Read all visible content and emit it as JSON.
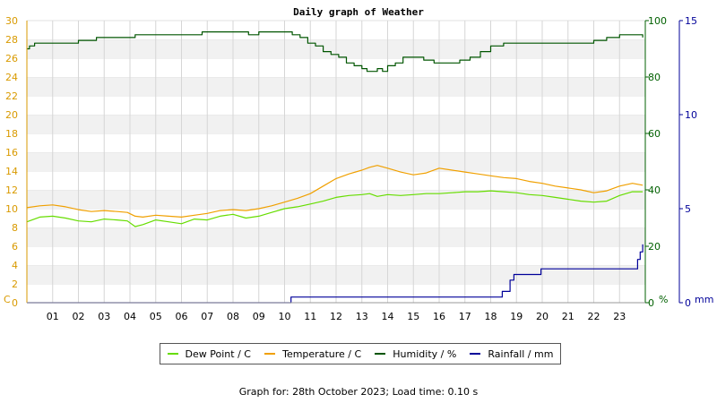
{
  "chart_data": {
    "type": "line",
    "title": "Daily graph of Weather",
    "x_ticks": [
      "01",
      "02",
      "03",
      "04",
      "05",
      "06",
      "07",
      "08",
      "09",
      "10",
      "11",
      "12",
      "13",
      "14",
      "15",
      "16",
      "17",
      "18",
      "19",
      "20",
      "21",
      "22",
      "23"
    ],
    "x_range": [
      0,
      24
    ],
    "axes": {
      "left": {
        "unit": "C",
        "min": 0,
        "max": 30,
        "step": 2,
        "color": "#d99a00"
      },
      "right1": {
        "unit": "%",
        "min": 0,
        "max": 100,
        "step": 20,
        "color": "#006000"
      },
      "right2": {
        "unit": "mm",
        "min": 0,
        "max": 15,
        "step": 5,
        "color": "#000099"
      }
    },
    "series": [
      {
        "name": "Dew Point / C",
        "color": "#66dd00",
        "axis": "left",
        "x": [
          0,
          0.5,
          1,
          1.5,
          2,
          2.5,
          3,
          3.5,
          3.9,
          4.2,
          4.5,
          5,
          5.5,
          6,
          6.5,
          7,
          7.5,
          8,
          8.5,
          9,
          9.5,
          10,
          10.5,
          11,
          11.5,
          12,
          12.5,
          13,
          13.3,
          13.6,
          14,
          14.5,
          15,
          15.5,
          16,
          16.5,
          17,
          17.5,
          18,
          18.5,
          19,
          19.5,
          20,
          20.5,
          21,
          21.5,
          22,
          22.5,
          23,
          23.5,
          23.9
        ],
        "y": [
          8.6,
          9.1,
          9.2,
          9.0,
          8.7,
          8.6,
          8.9,
          8.8,
          8.7,
          8.1,
          8.3,
          8.8,
          8.6,
          8.4,
          8.9,
          8.8,
          9.2,
          9.4,
          9.0,
          9.2,
          9.6,
          10.0,
          10.2,
          10.5,
          10.8,
          11.2,
          11.4,
          11.5,
          11.6,
          11.3,
          11.5,
          11.4,
          11.5,
          11.6,
          11.6,
          11.7,
          11.8,
          11.8,
          11.9,
          11.8,
          11.7,
          11.5,
          11.4,
          11.2,
          11.0,
          10.8,
          10.7,
          10.8,
          11.4,
          11.8,
          11.8
        ]
      },
      {
        "name": "Temperature / C",
        "color": "#f0a000",
        "axis": "left",
        "x": [
          0,
          0.5,
          1,
          1.5,
          2,
          2.5,
          3,
          3.5,
          3.9,
          4.2,
          4.5,
          5,
          5.5,
          6,
          6.5,
          7,
          7.5,
          8,
          8.5,
          9,
          9.5,
          10,
          10.5,
          11,
          11.5,
          12,
          12.5,
          13,
          13.3,
          13.6,
          14,
          14.5,
          15,
          15.5,
          16,
          16.5,
          17,
          17.5,
          18,
          18.5,
          19,
          19.5,
          20,
          20.5,
          21,
          21.5,
          22,
          22.5,
          23,
          23.5,
          23.9
        ],
        "y": [
          10.1,
          10.3,
          10.4,
          10.2,
          9.9,
          9.7,
          9.8,
          9.7,
          9.6,
          9.2,
          9.1,
          9.3,
          9.2,
          9.1,
          9.3,
          9.5,
          9.8,
          9.9,
          9.8,
          10.0,
          10.3,
          10.7,
          11.1,
          11.6,
          12.4,
          13.2,
          13.7,
          14.1,
          14.4,
          14.6,
          14.3,
          13.9,
          13.6,
          13.8,
          14.3,
          14.1,
          13.9,
          13.7,
          13.5,
          13.3,
          13.2,
          12.9,
          12.7,
          12.4,
          12.2,
          12.0,
          11.7,
          11.9,
          12.4,
          12.7,
          12.5
        ]
      },
      {
        "name": "Humidity / %",
        "color": "#005500",
        "axis": "right1",
        "x": [
          0,
          0.1,
          0.2,
          0.3,
          0.8,
          1.5,
          2,
          2.3,
          2.7,
          3.2,
          3.8,
          4.2,
          4.7,
          5.2,
          5.7,
          6.2,
          6.8,
          7.3,
          7.8,
          8.2,
          8.6,
          9.0,
          9.5,
          10.0,
          10.3,
          10.6,
          10.9,
          11.2,
          11.5,
          11.8,
          12.1,
          12.4,
          12.7,
          13.0,
          13.2,
          13.4,
          13.6,
          13.8,
          14.0,
          14.3,
          14.6,
          15.0,
          15.4,
          15.8,
          16.3,
          16.8,
          17.2,
          17.6,
          18.0,
          18.5,
          19.0,
          19.5,
          20.0,
          20.5,
          21.0,
          21.5,
          22.0,
          22.5,
          23.0,
          23.5,
          23.9
        ],
        "y": [
          90,
          91,
          91,
          92,
          92,
          92,
          93,
          93,
          94,
          94,
          94,
          95,
          95,
          95,
          95,
          95,
          96,
          96,
          96,
          96,
          95,
          96,
          96,
          96,
          95,
          94,
          92,
          91,
          89,
          88,
          87,
          85,
          84,
          83,
          82,
          82,
          83,
          82,
          84,
          85,
          87,
          87,
          86,
          85,
          85,
          86,
          87,
          89,
          91,
          92,
          92,
          92,
          92,
          92,
          92,
          92,
          93,
          94,
          95,
          95,
          94
        ]
      },
      {
        "name": "Rainfall / mm",
        "color": "#000099",
        "axis": "right2",
        "x": [
          0,
          10.2,
          10.25,
          18.4,
          18.45,
          18.7,
          18.75,
          18.85,
          18.9,
          19.9,
          19.95,
          23.6,
          23.7,
          23.8,
          23.9
        ],
        "y": [
          0,
          0,
          0.3,
          0.3,
          0.6,
          0.6,
          1.2,
          1.2,
          1.5,
          1.5,
          1.8,
          1.8,
          2.3,
          2.7,
          3.1
        ]
      }
    ]
  },
  "footer": "Graph for: 28th October 2023; Load time: 0.10 s"
}
